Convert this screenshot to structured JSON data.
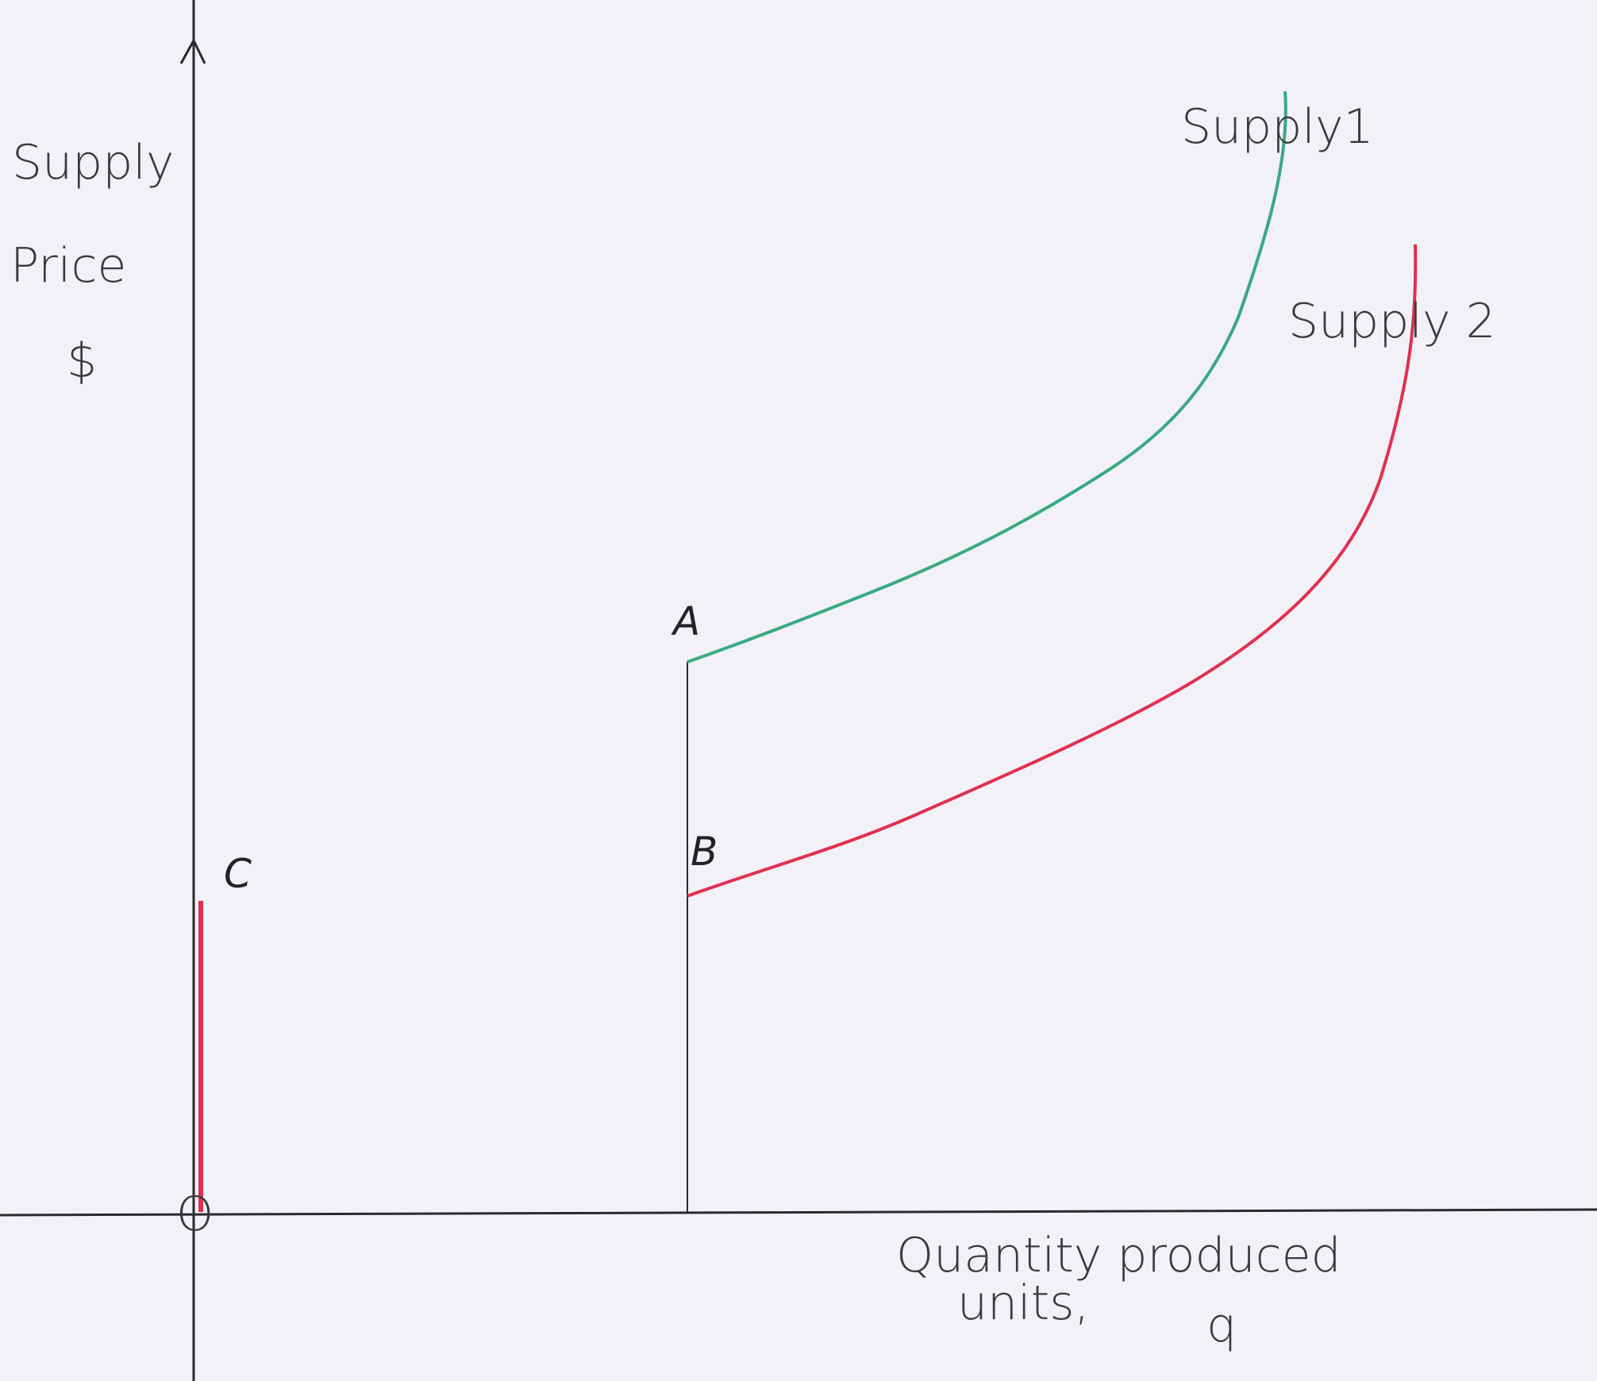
{
  "axes": {
    "y_label": [
      "Supply",
      "Price",
      "$"
    ],
    "x_label": [
      "Quantity produced",
      "units,",
      "q"
    ],
    "origin": "O"
  },
  "points": {
    "a": "A",
    "b": "B",
    "c": "C"
  },
  "curves": [
    {
      "label": "Supply1"
    },
    {
      "label": "Supply 2"
    }
  ]
}
